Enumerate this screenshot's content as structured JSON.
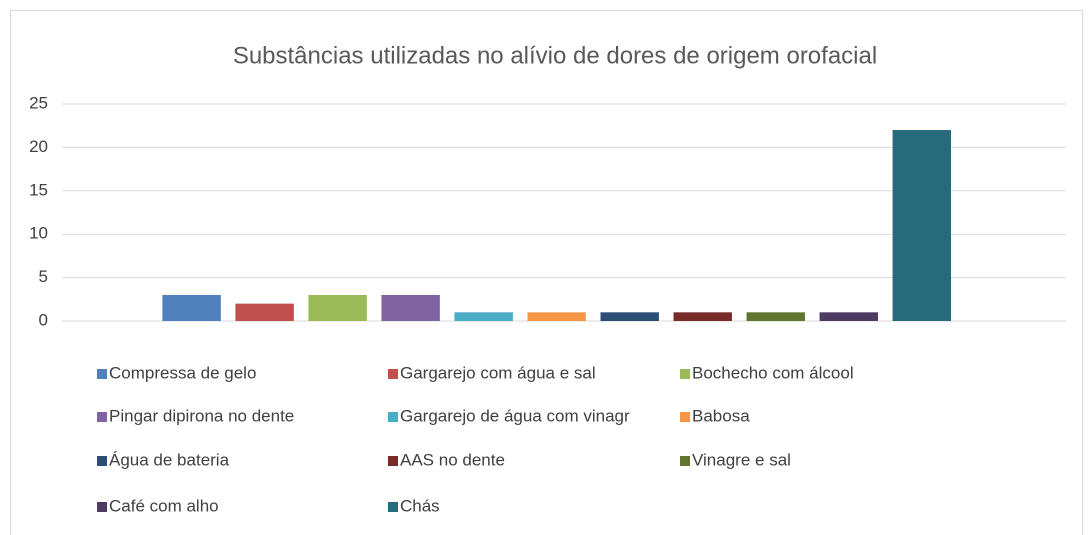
{
  "chart_data": {
    "type": "bar",
    "title": "Substâncias utilizadas no alívio de dores de origem orofacial",
    "categories": [
      null
    ],
    "series": [
      {
        "name": "Compressa de gelo",
        "color": "#4f81bd",
        "values": [
          3
        ]
      },
      {
        "name": "Gargarejo com água e sal",
        "color": "#c0504d",
        "values": [
          2
        ]
      },
      {
        "name": "Bochecho com álcool",
        "color": "#9bbb59",
        "values": [
          3
        ]
      },
      {
        "name": "Pingar dipirona no dente",
        "color": "#8064a2",
        "values": [
          3
        ]
      },
      {
        "name": "Gargarejo de água com vinagr",
        "color": "#4bacc6",
        "values": [
          1
        ]
      },
      {
        "name": "Babosa",
        "color": "#f79646",
        "values": [
          1
        ]
      },
      {
        "name": "Água de bateria",
        "color": "#2c4d75",
        "values": [
          1
        ]
      },
      {
        "name": "AAS no dente",
        "color": "#772c2a",
        "values": [
          1
        ]
      },
      {
        "name": "Vinagre e sal",
        "color": "#5f7530",
        "values": [
          1
        ]
      },
      {
        "name": "Café com alho",
        "color": "#4d3b62",
        "values": [
          1
        ]
      },
      {
        "name": "Chás",
        "color": "#276a7c",
        "values": [
          22
        ]
      }
    ],
    "ylim": [
      0,
      25
    ],
    "yticks": [
      0,
      5,
      10,
      15,
      20,
      25
    ],
    "grid": true,
    "legend": "bottom"
  }
}
